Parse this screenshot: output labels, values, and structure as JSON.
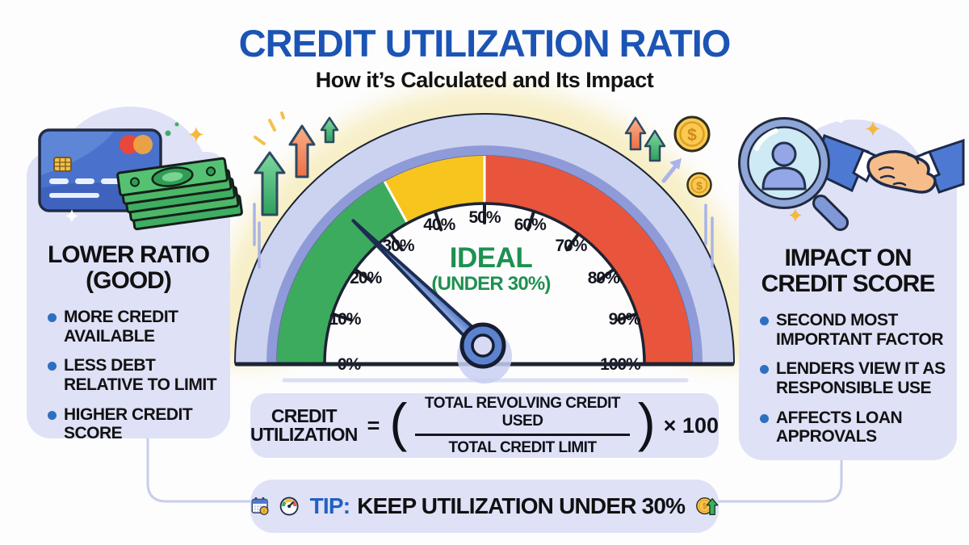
{
  "header": {
    "title": "CREDIT UTILIZATION RATIO",
    "subtitle": "How it’s Calculated and Its Impact"
  },
  "left_panel": {
    "heading_line1": "LOWER RATIO",
    "heading_line2": "(GOOD)",
    "bullets": [
      "MORE CREDIT AVAILABLE",
      "LESS DEBT RELATIVE TO LIMIT",
      "HIGHER CREDIT SCORE"
    ]
  },
  "right_panel": {
    "heading_line1": "IMPACT ON",
    "heading_line2": "CREDIT SCORE",
    "bullets": [
      "SECOND MOST IMPORTANT FACTOR",
      "LENDERS VIEW IT AS RESPONSIBLE USE",
      "AFFECTS LOAN APPROVALS"
    ]
  },
  "gauge": {
    "tick_labels": [
      "0%",
      "10%",
      "20%",
      "30%",
      "40%",
      "50%",
      "60%",
      "70%",
      "80%",
      "90%",
      "100%"
    ],
    "ideal_label": "IDEAL",
    "ideal_sublabel": "(UNDER 30%)",
    "needle_percent": 24.4,
    "zones": [
      {
        "name": "green",
        "from": 0,
        "to": 34,
        "color": "#3cab5d"
      },
      {
        "name": "yellow",
        "from": 34,
        "to": 50,
        "color": "#f7c51e"
      },
      {
        "name": "red",
        "from": 50,
        "to": 100,
        "color": "#e9543c"
      }
    ]
  },
  "formula": {
    "label_line1": "CREDIT",
    "label_line2": "UTILIZATION",
    "equals": "=",
    "open_paren": "(",
    "numerator": "TOTAL REVOLVING CREDIT USED",
    "denominator": "TOTAL CREDIT LIMIT",
    "close_paren": ")",
    "multiplier": "× 100"
  },
  "tip": {
    "prefix": "TIP:",
    "text": "KEEP UTILIZATION UNDER 30%",
    "coin_symbol": "$"
  },
  "icons": {
    "tip_left_1": "calendar-coin-icon",
    "tip_left_2": "speedometer-icon",
    "tip_right": "coin-up-arrow-icon",
    "left_panel": "credit-card-and-cash-icon",
    "right_panel": "magnifier-person-and-handshake-icon"
  },
  "colors": {
    "title_blue": "#1b54b4",
    "panel_bg": "#dfe1f7",
    "ideal_green": "#1e9150",
    "tip_blue": "#2260c4",
    "bullet_blue": "#2e6fc0",
    "needle_blue": "#5d83ce",
    "gauge_ring": "#ccd3f0",
    "gauge_stripe": "#8f9ad8",
    "glow_yellow": "#f6ecbc",
    "coin_gold": "#f9ca4f"
  }
}
